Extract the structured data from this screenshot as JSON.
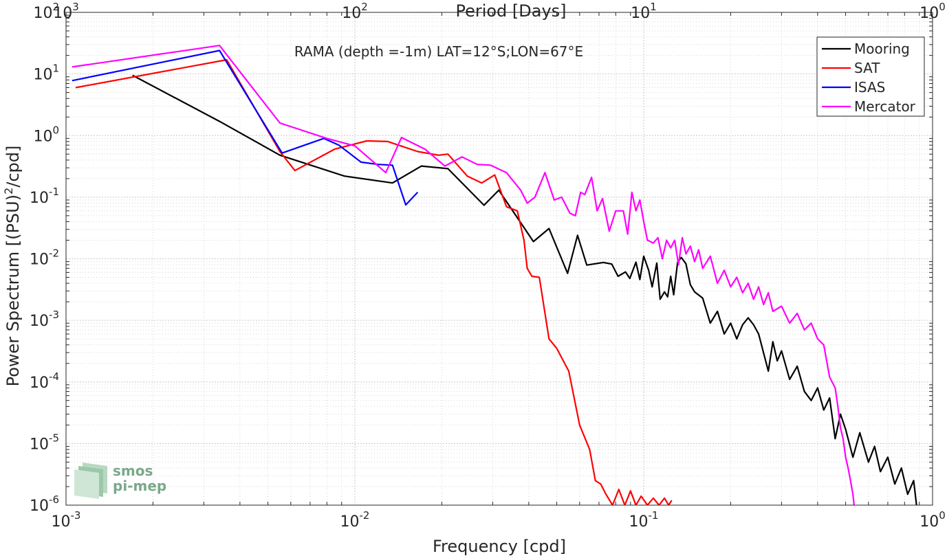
{
  "chart_data": {
    "type": "line",
    "title": "RAMA (depth =-1m) LAT=12°S;LON=67°E",
    "xlabel": "Frequency [cpd]",
    "ylabel_main": "Power Spectrum [(PSU)",
    "ylabel_sup": "2",
    "ylabel_tail": "/cpd]",
    "top_xlabel": "Period [Days]",
    "x_scale": "log",
    "y_scale": "log",
    "xlim": [
      0.001,
      1
    ],
    "ylim": [
      1e-06,
      100
    ],
    "grid": true,
    "legend_position": "top-right",
    "x_ticks": [
      {
        "base": "10",
        "exp": "-3",
        "value": 0.001
      },
      {
        "base": "10",
        "exp": "-2",
        "value": 0.01
      },
      {
        "base": "10",
        "exp": "-1",
        "value": 0.1
      },
      {
        "base": "10",
        "exp": "0",
        "value": 1
      }
    ],
    "top_ticks": [
      {
        "base": "10",
        "exp": "3",
        "value": 0.001
      },
      {
        "base": "10",
        "exp": "2",
        "value": 0.01
      },
      {
        "base": "10",
        "exp": "1",
        "value": 0.1
      },
      {
        "base": "10",
        "exp": "0",
        "value": 1
      }
    ],
    "y_ticks": [
      {
        "base": "10",
        "exp": "2",
        "value": 100
      },
      {
        "base": "10",
        "exp": "1",
        "value": 10
      },
      {
        "base": "10",
        "exp": "0",
        "value": 1
      },
      {
        "base": "10",
        "exp": "-1",
        "value": 0.1
      },
      {
        "base": "10",
        "exp": "-2",
        "value": 0.01
      },
      {
        "base": "10",
        "exp": "-3",
        "value": 0.001
      },
      {
        "base": "10",
        "exp": "-4",
        "value": 0.0001
      },
      {
        "base": "10",
        "exp": "-5",
        "value": 1e-05
      },
      {
        "base": "10",
        "exp": "-6",
        "value": 1e-06
      }
    ],
    "series": [
      {
        "name": "Mooring",
        "color": "#000000",
        "points": [
          [
            0.0017,
            9.5
          ],
          [
            0.0034,
            1.7
          ],
          [
            0.0055,
            0.48
          ],
          [
            0.0092,
            0.22
          ],
          [
            0.0135,
            0.17
          ],
          [
            0.017,
            0.32
          ],
          [
            0.021,
            0.29
          ],
          [
            0.028,
            0.074
          ],
          [
            0.0315,
            0.13
          ],
          [
            0.0415,
            0.019
          ],
          [
            0.047,
            0.031
          ],
          [
            0.0545,
            0.0058
          ],
          [
            0.059,
            0.024
          ],
          [
            0.0635,
            0.0079
          ],
          [
            0.0725,
            0.0087
          ],
          [
            0.0775,
            0.0082
          ],
          [
            0.0815,
            0.0052
          ],
          [
            0.0865,
            0.0061
          ],
          [
            0.0895,
            0.0048
          ],
          [
            0.094,
            0.0088
          ],
          [
            0.097,
            0.0046
          ],
          [
            0.1,
            0.011
          ],
          [
            0.104,
            0.0065
          ],
          [
            0.107,
            0.0035
          ],
          [
            0.111,
            0.0085
          ],
          [
            0.114,
            0.0022
          ],
          [
            0.118,
            0.0029
          ],
          [
            0.121,
            0.0024
          ],
          [
            0.124,
            0.0052
          ],
          [
            0.127,
            0.0026
          ],
          [
            0.131,
            0.0088
          ],
          [
            0.135,
            0.0105
          ],
          [
            0.14,
            0.0083
          ],
          [
            0.145,
            0.0038
          ],
          [
            0.15,
            0.0029
          ],
          [
            0.16,
            0.0023
          ],
          [
            0.17,
            0.0009
          ],
          [
            0.18,
            0.0014
          ],
          [
            0.19,
            0.0006
          ],
          [
            0.2,
            0.0009
          ],
          [
            0.21,
            0.0005
          ],
          [
            0.22,
            0.00085
          ],
          [
            0.23,
            0.0011
          ],
          [
            0.24,
            0.00085
          ],
          [
            0.25,
            0.0006
          ],
          [
            0.27,
            0.00015
          ],
          [
            0.28,
            0.00045
          ],
          [
            0.29,
            0.00022
          ],
          [
            0.3,
            0.00032
          ],
          [
            0.32,
            0.00011
          ],
          [
            0.34,
            0.00018
          ],
          [
            0.36,
            7e-05
          ],
          [
            0.38,
            5e-05
          ],
          [
            0.4,
            8e-05
          ],
          [
            0.42,
            3.5e-05
          ],
          [
            0.44,
            5.5e-05
          ],
          [
            0.46,
            1.2e-05
          ],
          [
            0.48,
            3e-05
          ],
          [
            0.5,
            1.7e-05
          ],
          [
            0.53,
            6e-06
          ],
          [
            0.56,
            1.5e-05
          ],
          [
            0.6,
            5e-06
          ],
          [
            0.63,
            9e-06
          ],
          [
            0.66,
            3.5e-06
          ],
          [
            0.7,
            6e-06
          ],
          [
            0.74,
            2.2e-06
          ],
          [
            0.78,
            4e-06
          ],
          [
            0.82,
            1.5e-06
          ],
          [
            0.86,
            2.5e-06
          ],
          [
            0.88,
            1e-06
          ]
        ]
      },
      {
        "name": "SAT",
        "color": "#ff0000",
        "points": [
          [
            0.00108,
            6.0
          ],
          [
            0.0036,
            17.0
          ],
          [
            0.0055,
            0.55
          ],
          [
            0.0062,
            0.27
          ],
          [
            0.0085,
            0.6
          ],
          [
            0.011,
            0.82
          ],
          [
            0.013,
            0.8
          ],
          [
            0.0165,
            0.55
          ],
          [
            0.0195,
            0.48
          ],
          [
            0.021,
            0.5
          ],
          [
            0.0245,
            0.22
          ],
          [
            0.0275,
            0.17
          ],
          [
            0.0305,
            0.23
          ],
          [
            0.0335,
            0.07
          ],
          [
            0.0365,
            0.06
          ],
          [
            0.0385,
            0.02
          ],
          [
            0.0395,
            0.007
          ],
          [
            0.041,
            0.0052
          ],
          [
            0.0435,
            0.005
          ],
          [
            0.047,
            0.0005
          ],
          [
            0.05,
            0.00035
          ],
          [
            0.055,
            0.00015
          ],
          [
            0.06,
            2e-05
          ],
          [
            0.065,
            8e-06
          ],
          [
            0.068,
            2.5e-06
          ],
          [
            0.071,
            2.2e-06
          ],
          [
            0.074,
            1.5e-06
          ],
          [
            0.078,
            1e-06
          ],
          [
            0.082,
            1.8e-06
          ],
          [
            0.086,
            1e-06
          ],
          [
            0.09,
            1.7e-06
          ],
          [
            0.094,
            1e-06
          ],
          [
            0.098,
            1.4e-06
          ],
          [
            0.103,
            1e-06
          ],
          [
            0.108,
            1.3e-06
          ],
          [
            0.113,
            1e-06
          ],
          [
            0.118,
            1.3e-06
          ],
          [
            0.122,
            1e-06
          ],
          [
            0.125,
            1.2e-06
          ]
        ]
      },
      {
        "name": "ISAS",
        "color": "#0000ff",
        "points": [
          [
            0.00105,
            7.8
          ],
          [
            0.0034,
            24.0
          ],
          [
            0.0056,
            0.52
          ],
          [
            0.0078,
            0.9
          ],
          [
            0.0088,
            0.7
          ],
          [
            0.0105,
            0.37
          ],
          [
            0.012,
            0.34
          ],
          [
            0.0135,
            0.33
          ],
          [
            0.015,
            0.075
          ],
          [
            0.0165,
            0.12
          ]
        ]
      },
      {
        "name": "Mercator",
        "color": "#ff00ff",
        "points": [
          [
            0.00105,
            13.0
          ],
          [
            0.0034,
            29.0
          ],
          [
            0.0055,
            1.6
          ],
          [
            0.008,
            0.9
          ],
          [
            0.01,
            0.68
          ],
          [
            0.0128,
            0.25
          ],
          [
            0.0145,
            0.93
          ],
          [
            0.0175,
            0.6
          ],
          [
            0.0205,
            0.32
          ],
          [
            0.0235,
            0.45
          ],
          [
            0.0265,
            0.34
          ],
          [
            0.0295,
            0.33
          ],
          [
            0.0335,
            0.25
          ],
          [
            0.0375,
            0.13
          ],
          [
            0.0395,
            0.08
          ],
          [
            0.042,
            0.1
          ],
          [
            0.0455,
            0.25
          ],
          [
            0.049,
            0.09
          ],
          [
            0.052,
            0.1
          ],
          [
            0.0555,
            0.055
          ],
          [
            0.058,
            0.05
          ],
          [
            0.0605,
            0.12
          ],
          [
            0.0625,
            0.11
          ],
          [
            0.066,
            0.21
          ],
          [
            0.069,
            0.06
          ],
          [
            0.072,
            0.095
          ],
          [
            0.076,
            0.028
          ],
          [
            0.08,
            0.06
          ],
          [
            0.085,
            0.06
          ],
          [
            0.088,
            0.025
          ],
          [
            0.091,
            0.12
          ],
          [
            0.094,
            0.06
          ],
          [
            0.097,
            0.09
          ],
          [
            0.1,
            0.04
          ],
          [
            0.103,
            0.02
          ],
          [
            0.108,
            0.018
          ],
          [
            0.112,
            0.022
          ],
          [
            0.116,
            0.01
          ],
          [
            0.12,
            0.02
          ],
          [
            0.124,
            0.015
          ],
          [
            0.128,
            0.02
          ],
          [
            0.132,
            0.008
          ],
          [
            0.136,
            0.022
          ],
          [
            0.14,
            0.012
          ],
          [
            0.145,
            0.016
          ],
          [
            0.15,
            0.009
          ],
          [
            0.155,
            0.014
          ],
          [
            0.16,
            0.007
          ],
          [
            0.17,
            0.011
          ],
          [
            0.18,
            0.004
          ],
          [
            0.19,
            0.0065
          ],
          [
            0.2,
            0.0035
          ],
          [
            0.21,
            0.005
          ],
          [
            0.22,
            0.0028
          ],
          [
            0.23,
            0.004
          ],
          [
            0.24,
            0.0022
          ],
          [
            0.25,
            0.0035
          ],
          [
            0.26,
            0.0018
          ],
          [
            0.27,
            0.0028
          ],
          [
            0.28,
            0.0014
          ],
          [
            0.3,
            0.0017
          ],
          [
            0.32,
            0.0009
          ],
          [
            0.34,
            0.0013
          ],
          [
            0.36,
            0.0007
          ],
          [
            0.38,
            0.0009
          ],
          [
            0.4,
            0.0005
          ],
          [
            0.42,
            0.0004
          ],
          [
            0.44,
            0.00012
          ],
          [
            0.46,
            8e-05
          ],
          [
            0.47,
            4e-05
          ],
          [
            0.48,
            1.8e-05
          ],
          [
            0.49,
            1.2e-05
          ],
          [
            0.5,
            6e-06
          ],
          [
            0.51,
            4e-06
          ],
          [
            0.52,
            2.5e-06
          ],
          [
            0.53,
            1.5e-06
          ],
          [
            0.535,
            1e-06
          ]
        ]
      }
    ]
  },
  "logo": {
    "line1": "smos",
    "line2": "pi-mep"
  }
}
